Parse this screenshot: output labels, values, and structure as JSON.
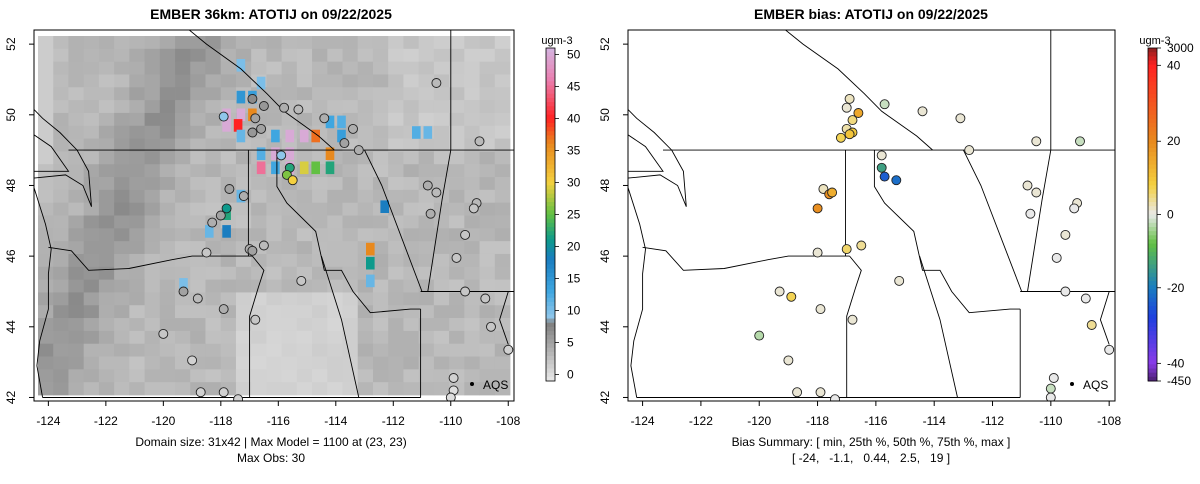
{
  "chart_data": [
    {
      "type": "heatmap",
      "title": "EMBER 36km: ATOTIJ on 09/22/2025",
      "xlim": [
        -124.5,
        -107.8
      ],
      "ylim": [
        41.9,
        52.4
      ],
      "x_ticks": [
        -124,
        -122,
        -120,
        -118,
        -116,
        -114,
        -112,
        -110,
        -108
      ],
      "x_tick_labels": [
        "-124",
        "-122",
        "-120",
        "-118",
        "-116",
        "-114",
        "-112",
        "-110",
        "-108"
      ],
      "y_ticks": [
        42,
        44,
        46,
        48,
        50,
        52
      ],
      "y_tick_labels": [
        "42",
        "44",
        "46",
        "48",
        "50",
        "52"
      ],
      "colorbar": {
        "label": "ugm-3",
        "ticks": [
          0,
          5,
          10,
          15,
          20,
          25,
          30,
          35,
          40,
          45,
          50
        ],
        "tick_labels": [
          "0",
          "5",
          "10",
          "15",
          "20",
          "25",
          "30",
          "35",
          "40",
          "45",
          "50"
        ],
        "range": [
          -1,
          51
        ],
        "stops": [
          {
            "v": -1,
            "c": "#e9e9e9"
          },
          {
            "v": 8,
            "c": "#7f7f7f"
          },
          {
            "v": 9,
            "c": "#8fc6ea"
          },
          {
            "v": 13,
            "c": "#3fa6e0"
          },
          {
            "v": 18,
            "c": "#1a7dc0"
          },
          {
            "v": 21,
            "c": "#0e9a8c"
          },
          {
            "v": 25,
            "c": "#62c043"
          },
          {
            "v": 30,
            "c": "#f4d03f"
          },
          {
            "v": 36,
            "c": "#e8891e"
          },
          {
            "v": 40,
            "c": "#ff2222"
          },
          {
            "v": 46,
            "c": "#ea7fb0"
          },
          {
            "v": 51,
            "c": "#d4b5e0"
          }
        ]
      },
      "hotspots": [
        {
          "lon": -117.8,
          "lat": 50.0,
          "value": 50
        },
        {
          "lon": -117.3,
          "lat": 50.0,
          "value": 50
        },
        {
          "lon": -117.8,
          "lat": 49.7,
          "value": 50
        },
        {
          "lon": -115.6,
          "lat": 49.4,
          "value": 50
        },
        {
          "lon": -115.1,
          "lat": 49.4,
          "value": 50
        },
        {
          "lon": -115.6,
          "lat": 48.9,
          "value": 50
        },
        {
          "lon": -116.1,
          "lat": 48.9,
          "value": 50
        },
        {
          "lon": -115.6,
          "lat": 48.5,
          "value": 50
        },
        {
          "lon": -117.4,
          "lat": 49.7,
          "value": 40
        },
        {
          "lon": -114.7,
          "lat": 49.4,
          "value": 37
        },
        {
          "lon": -116.9,
          "lat": 50.0,
          "value": 36
        },
        {
          "lon": -114.2,
          "lat": 48.9,
          "value": 36
        },
        {
          "lon": -115.1,
          "lat": 48.5,
          "value": 29
        },
        {
          "lon": -114.7,
          "lat": 48.5,
          "value": 25
        },
        {
          "lon": -114.2,
          "lat": 48.5,
          "value": 22
        },
        {
          "lon": -116.6,
          "lat": 48.5,
          "value": 45
        },
        {
          "lon": -117.8,
          "lat": 47.2,
          "value": 22
        },
        {
          "lon": -117.8,
          "lat": 46.7,
          "value": 18
        },
        {
          "lon": -112.8,
          "lat": 46.2,
          "value": 36
        },
        {
          "lon": -112.8,
          "lat": 45.8,
          "value": 21
        },
        {
          "lon": -112.3,
          "lat": 47.4,
          "value": 18
        },
        {
          "lon": -117.3,
          "lat": 50.5,
          "value": 15
        },
        {
          "lon": -116.9,
          "lat": 50.5,
          "value": 14
        },
        {
          "lon": -114.2,
          "lat": 49.8,
          "value": 13
        },
        {
          "lon": -113.8,
          "lat": 49.8,
          "value": 12
        },
        {
          "lon": -113.8,
          "lat": 49.4,
          "value": 14
        },
        {
          "lon": -111.2,
          "lat": 49.5,
          "value": 12
        },
        {
          "lon": -110.8,
          "lat": 49.5,
          "value": 11
        },
        {
          "lon": -116.1,
          "lat": 48.5,
          "value": 13
        },
        {
          "lon": -116.6,
          "lat": 48.9,
          "value": 12
        },
        {
          "lon": -116.1,
          "lat": 49.4,
          "value": 13
        },
        {
          "lon": -117.3,
          "lat": 49.4,
          "value": 11
        },
        {
          "lon": -112.8,
          "lat": 45.3,
          "value": 11
        },
        {
          "lon": -119.3,
          "lat": 45.2,
          "value": 10
        },
        {
          "lon": -117.3,
          "lat": 47.7,
          "value": 11
        },
        {
          "lon": -118.4,
          "lat": 46.7,
          "value": 11
        },
        {
          "lon": -116.6,
          "lat": 50.9,
          "value": 10
        },
        {
          "lon": -117.3,
          "lat": 51.4,
          "value": 10
        }
      ],
      "stations": [
        {
          "lon": -117.9,
          "lat": 49.95,
          "value": 9
        },
        {
          "lon": -116.9,
          "lat": 50.45,
          "value": 7
        },
        {
          "lon": -116.5,
          "lat": 50.25,
          "value": 6
        },
        {
          "lon": -116.8,
          "lat": 49.9,
          "value": 5
        },
        {
          "lon": -116.9,
          "lat": 49.5,
          "value": 6
        },
        {
          "lon": -116.6,
          "lat": 49.6,
          "value": 5
        },
        {
          "lon": -115.8,
          "lat": 50.2,
          "value": 4
        },
        {
          "lon": -115.3,
          "lat": 50.15,
          "value": 3
        },
        {
          "lon": -114.4,
          "lat": 49.9,
          "value": 4
        },
        {
          "lon": -113.7,
          "lat": 49.2,
          "value": 5
        },
        {
          "lon": -113.2,
          "lat": 49.0,
          "value": 4
        },
        {
          "lon": -115.9,
          "lat": 48.85,
          "value": 9
        },
        {
          "lon": -115.6,
          "lat": 48.5,
          "value": 22
        },
        {
          "lon": -115.7,
          "lat": 48.3,
          "value": 26
        },
        {
          "lon": -115.5,
          "lat": 48.15,
          "value": 30
        },
        {
          "lon": -117.7,
          "lat": 47.9,
          "value": 5
        },
        {
          "lon": -117.2,
          "lat": 47.7,
          "value": 4
        },
        {
          "lon": -117.8,
          "lat": 47.35,
          "value": 21
        },
        {
          "lon": -118.0,
          "lat": 47.15,
          "value": 5
        },
        {
          "lon": -117.0,
          "lat": 46.2,
          "value": 4
        },
        {
          "lon": -116.9,
          "lat": 46.15,
          "value": 5
        },
        {
          "lon": -116.5,
          "lat": 46.3,
          "value": 3
        },
        {
          "lon": -118.5,
          "lat": 46.1,
          "value": 2
        },
        {
          "lon": -115.2,
          "lat": 45.3,
          "value": 2
        },
        {
          "lon": -118.8,
          "lat": 44.8,
          "value": 3
        },
        {
          "lon": -117.9,
          "lat": 44.5,
          "value": 4
        },
        {
          "lon": -116.8,
          "lat": 44.2,
          "value": 2
        },
        {
          "lon": -119.3,
          "lat": 45.0,
          "value": 5
        },
        {
          "lon": -120.0,
          "lat": 43.8,
          "value": 2
        },
        {
          "lon": -119.0,
          "lat": 43.05,
          "value": 1
        },
        {
          "lon": -118.7,
          "lat": 42.15,
          "value": 1
        },
        {
          "lon": -117.9,
          "lat": 42.15,
          "value": 1
        },
        {
          "lon": -117.4,
          "lat": 41.95,
          "value": 1
        },
        {
          "lon": -113.4,
          "lat": 49.6,
          "value": 4
        },
        {
          "lon": -110.8,
          "lat": 48.0,
          "value": 4
        },
        {
          "lon": -110.5,
          "lat": 47.8,
          "value": 3
        },
        {
          "lon": -110.7,
          "lat": 47.2,
          "value": 4
        },
        {
          "lon": -109.1,
          "lat": 47.5,
          "value": 3
        },
        {
          "lon": -109.2,
          "lat": 47.35,
          "value": 2
        },
        {
          "lon": -109.5,
          "lat": 46.6,
          "value": 2
        },
        {
          "lon": -109.8,
          "lat": 45.95,
          "value": 2
        },
        {
          "lon": -109.0,
          "lat": 49.25,
          "value": 3
        },
        {
          "lon": -110.5,
          "lat": 50.9,
          "value": 3
        },
        {
          "lon": -109.5,
          "lat": 45.0,
          "value": 2
        },
        {
          "lon": -108.8,
          "lat": 44.8,
          "value": 2
        },
        {
          "lon": -108.6,
          "lat": 44.0,
          "value": 2
        },
        {
          "lon": -108.0,
          "lat": 43.35,
          "value": 1
        },
        {
          "lon": -109.9,
          "lat": 42.55,
          "value": 1
        },
        {
          "lon": -109.9,
          "lat": 42.2,
          "value": 0
        },
        {
          "lon": -110.0,
          "lat": 42.0,
          "value": 0
        },
        {
          "lon": -118.3,
          "lat": 46.95,
          "value": 4
        }
      ],
      "legend_label": "AQS",
      "footer_lines": [
        "Domain size: 31x42 | Max Model = 1100 at (23, 23)",
        "Max Obs: 30"
      ]
    },
    {
      "type": "scatter",
      "title": "EMBER bias: ATOTIJ on 09/22/2025",
      "xlim": [
        -124.5,
        -107.8
      ],
      "ylim": [
        41.9,
        52.4
      ],
      "x_ticks": [
        -124,
        -122,
        -120,
        -118,
        -116,
        -114,
        -112,
        -110,
        -108
      ],
      "x_tick_labels": [
        "-124",
        "-122",
        "-120",
        "-118",
        "-116",
        "-114",
        "-112",
        "-110",
        "-108"
      ],
      "y_ticks": [
        42,
        44,
        46,
        48,
        50,
        52
      ],
      "y_tick_labels": [
        "42",
        "44",
        "46",
        "48",
        "50",
        "52"
      ],
      "colorbar": {
        "label": "ugm-3",
        "ticks": [
          3000,
          40,
          20,
          0,
          -20,
          -40,
          -450
        ],
        "tick_labels": [
          "3000",
          "40",
          "20",
          "0",
          "-20",
          "-40",
          "-450"
        ],
        "stops": [
          {
            "v": 3000,
            "c": "#8b2020"
          },
          {
            "v": 40,
            "c": "#ff2222"
          },
          {
            "v": 20,
            "c": "#e8891e"
          },
          {
            "v": 8,
            "c": "#f4d03f"
          },
          {
            "v": 0,
            "c": "#e9e9e9"
          },
          {
            "v": -8,
            "c": "#62c043"
          },
          {
            "v": -20,
            "c": "#1a7dc0"
          },
          {
            "v": -28,
            "c": "#1f3fe0"
          },
          {
            "v": -40,
            "c": "#8a3ce8"
          },
          {
            "v": -450,
            "c": "#4a2070"
          }
        ]
      },
      "stations": [
        {
          "lon": -116.9,
          "lat": 50.45,
          "value": 2
        },
        {
          "lon": -117.0,
          "lat": 50.2,
          "value": 1
        },
        {
          "lon": -115.7,
          "lat": 50.3,
          "value": -2
        },
        {
          "lon": -114.4,
          "lat": 50.1,
          "value": 1
        },
        {
          "lon": -113.1,
          "lat": 49.9,
          "value": 1
        },
        {
          "lon": -112.8,
          "lat": 49.0,
          "value": 1
        },
        {
          "lon": -116.6,
          "lat": 50.05,
          "value": 15
        },
        {
          "lon": -116.8,
          "lat": 49.85,
          "value": 5
        },
        {
          "lon": -117.0,
          "lat": 49.6,
          "value": 3
        },
        {
          "lon": -116.8,
          "lat": 49.5,
          "value": 9
        },
        {
          "lon": -117.2,
          "lat": 49.35,
          "value": 7
        },
        {
          "lon": -116.9,
          "lat": 49.45,
          "value": 10
        },
        {
          "lon": -115.8,
          "lat": 48.85,
          "value": 1
        },
        {
          "lon": -115.8,
          "lat": 48.5,
          "value": -14
        },
        {
          "lon": -115.7,
          "lat": 48.25,
          "value": -24
        },
        {
          "lon": -115.3,
          "lat": 48.15,
          "value": -22
        },
        {
          "lon": -117.8,
          "lat": 47.9,
          "value": 2
        },
        {
          "lon": -117.6,
          "lat": 47.75,
          "value": 19
        },
        {
          "lon": -117.5,
          "lat": 47.8,
          "value": 14
        },
        {
          "lon": -118.0,
          "lat": 47.35,
          "value": 19
        },
        {
          "lon": -118.0,
          "lat": 46.1,
          "value": 1
        },
        {
          "lon": -117.0,
          "lat": 46.2,
          "value": 6
        },
        {
          "lon": -116.5,
          "lat": 46.3,
          "value": 4
        },
        {
          "lon": -115.2,
          "lat": 45.3,
          "value": 1
        },
        {
          "lon": -119.3,
          "lat": 45.0,
          "value": 1
        },
        {
          "lon": -118.9,
          "lat": 44.85,
          "value": 7
        },
        {
          "lon": -117.9,
          "lat": 44.5,
          "value": 1
        },
        {
          "lon": -116.8,
          "lat": 44.2,
          "value": 1
        },
        {
          "lon": -120.0,
          "lat": 43.75,
          "value": -3
        },
        {
          "lon": -119.0,
          "lat": 43.05,
          "value": 1
        },
        {
          "lon": -118.7,
          "lat": 42.15,
          "value": 1
        },
        {
          "lon": -117.9,
          "lat": 42.15,
          "value": 1
        },
        {
          "lon": -117.4,
          "lat": 41.95,
          "value": 0
        },
        {
          "lon": -110.8,
          "lat": 48.0,
          "value": 1
        },
        {
          "lon": -110.5,
          "lat": 47.8,
          "value": 1
        },
        {
          "lon": -110.7,
          "lat": 47.2,
          "value": 0
        },
        {
          "lon": -109.1,
          "lat": 47.5,
          "value": 1
        },
        {
          "lon": -109.2,
          "lat": 47.35,
          "value": 0
        },
        {
          "lon": -109.5,
          "lat": 46.6,
          "value": 1
        },
        {
          "lon": -109.8,
          "lat": 45.95,
          "value": 0
        },
        {
          "lon": -110.5,
          "lat": 49.25,
          "value": 1
        },
        {
          "lon": -109.0,
          "lat": 49.25,
          "value": -2
        },
        {
          "lon": -109.5,
          "lat": 45.0,
          "value": 0
        },
        {
          "lon": -108.8,
          "lat": 44.8,
          "value": 0
        },
        {
          "lon": -108.6,
          "lat": 44.05,
          "value": 4
        },
        {
          "lon": -108.0,
          "lat": 43.35,
          "value": 0
        },
        {
          "lon": -109.9,
          "lat": 42.55,
          "value": 0
        },
        {
          "lon": -110.0,
          "lat": 42.25,
          "value": -2
        },
        {
          "lon": -110.0,
          "lat": 42.0,
          "value": 0
        }
      ],
      "legend_label": "AQS",
      "footer_lines": [
        "Bias Summary: [ min, 25th %, 50th %, 75th %, max ]",
        "[ -24,   -1.1,   0.44,   2.5,   19 ]"
      ]
    }
  ]
}
